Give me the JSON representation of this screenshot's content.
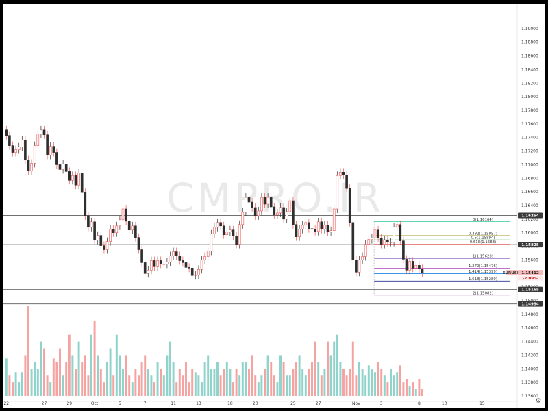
{
  "watermark": "CMPRO.IR",
  "colors": {
    "up": "#26a69a",
    "down": "#ef5350",
    "volume_up": "#8fd3cb",
    "volume_down": "#f5a3a1",
    "level": "#707070"
  },
  "settings_icon": "gear-icon",
  "chart_data": {
    "type": "candlestick",
    "symbol": "EURUSD",
    "ylim": [
      1.136,
      1.192
    ],
    "y_ticks": [
      "1.19000",
      "1.18800",
      "1.18600",
      "1.18400",
      "1.18200",
      "1.18000",
      "1.17800",
      "1.17600",
      "1.17400",
      "1.17200",
      "1.17000",
      "1.16800",
      "1.16600",
      "1.16400",
      "1.16200",
      "1.16000",
      "1.15800",
      "1.15600",
      "1.15400",
      "1.15200",
      "1.15000",
      "1.14800",
      "1.14600",
      "1.14400",
      "1.14200",
      "1.14000",
      "1.13800",
      "1.13600"
    ],
    "x_ticks": [
      {
        "label": "22",
        "index": 0
      },
      {
        "label": "27",
        "index": 12
      },
      {
        "label": "29",
        "index": 20
      },
      {
        "label": "Oct",
        "index": 28
      },
      {
        "label": "5",
        "index": 36
      },
      {
        "label": "7",
        "index": 44
      },
      {
        "label": "11",
        "index": 53
      },
      {
        "label": "13",
        "index": 61
      },
      {
        "label": "18",
        "index": 71
      },
      {
        "label": "20",
        "index": 79
      },
      {
        "label": "25",
        "index": 91
      },
      {
        "label": "27",
        "index": 99
      },
      {
        "label": "Nov",
        "index": 111
      },
      {
        "label": "3",
        "index": 119
      },
      {
        "label": "8",
        "index": 131
      },
      {
        "label": "10",
        "index": 139
      },
      {
        "label": "15",
        "index": 151
      }
    ],
    "series": [
      {
        "name": "EURUSD",
        "close": [
          1.1743,
          1.1728,
          1.1718,
          1.1722,
          1.1726,
          1.1736,
          1.1707,
          1.1691,
          1.1702,
          1.1728,
          1.1745,
          1.1751,
          1.1744,
          1.1714,
          1.1727,
          1.1718,
          1.17,
          1.1693,
          1.1701,
          1.169,
          1.1677,
          1.1684,
          1.167,
          1.1688,
          1.1659,
          1.1625,
          1.1608,
          1.1616,
          1.1589,
          1.1596,
          1.1581,
          1.1575,
          1.1587,
          1.1605,
          1.16,
          1.161,
          1.1619,
          1.1635,
          1.1617,
          1.1604,
          1.161,
          1.1593,
          1.1575,
          1.1556,
          1.154,
          1.1545,
          1.1559,
          1.155,
          1.1559,
          1.1554,
          1.1554,
          1.1557,
          1.1566,
          1.1572,
          1.1566,
          1.1559,
          1.1556,
          1.1549,
          1.1548,
          1.1537,
          1.1538,
          1.1546,
          1.156,
          1.1565,
          1.1573,
          1.1598,
          1.1608,
          1.1615,
          1.161,
          1.1597,
          1.1601,
          1.1604,
          1.1595,
          1.1583,
          1.1612,
          1.163,
          1.1652,
          1.1645,
          1.1637,
          1.1625,
          1.1632,
          1.1652,
          1.1642,
          1.1652,
          1.1638,
          1.1626,
          1.1629,
          1.1637,
          1.162,
          1.1631,
          1.1647,
          1.1612,
          1.1594,
          1.1605,
          1.1611,
          1.1615,
          1.1606,
          1.1605,
          1.1602,
          1.1616,
          1.1605,
          1.1611,
          1.1601,
          1.1603,
          1.1635,
          1.1684,
          1.1689,
          1.1685,
          1.1665,
          1.1615,
          1.156,
          1.1542,
          1.156,
          1.1565,
          1.1583,
          1.159,
          1.1592,
          1.1604,
          1.1592,
          1.1583,
          1.1589,
          1.1586,
          1.1586,
          1.1608,
          1.1612,
          1.1588,
          1.1561,
          1.1545,
          1.1558,
          1.1548,
          1.1552,
          1.1547,
          1.1541
        ]
      }
    ],
    "volume": [
      1.1415,
      1.139,
      1.138,
      1.1395,
      1.138,
      1.1395,
      1.142,
      1.1492,
      1.14,
      1.141,
      1.14,
      1.144,
      1.143,
      1.139,
      1.138,
      1.1415,
      1.141,
      1.143,
      1.139,
      1.141,
      1.145,
      1.142,
      1.14,
      1.144,
      1.141,
      1.142,
      1.139,
      1.145,
      1.147,
      1.142,
      1.14,
      1.138,
      1.141,
      1.143,
      1.139,
      1.145,
      1.142,
      1.14,
      1.142,
      1.139,
      1.138,
      1.14,
      1.139,
      1.141,
      1.142,
      1.14,
      1.139,
      1.138,
      1.141,
      1.14,
      1.139,
      1.142,
      1.144,
      1.141,
      1.138,
      1.14,
      1.139,
      1.141,
      1.138,
      1.14,
      1.1395,
      1.139,
      1.138,
      1.141,
      1.142,
      1.14,
      1.14,
      1.141,
      1.139,
      1.14,
      1.141,
      1.14,
      1.138,
      1.14,
      1.139,
      1.141,
      1.141,
      1.14,
      1.142,
      1.139,
      1.138,
      1.139,
      1.14,
      1.142,
      1.141,
      1.139,
      1.138,
      1.142,
      1.141,
      1.139,
      1.139,
      1.14,
      1.141,
      1.142,
      1.14,
      1.139,
      1.14,
      1.141,
      1.144,
      1.141,
      1.139,
      1.14,
      1.144,
      1.142,
      1.144,
      1.145,
      1.141,
      1.14,
      1.139,
      1.14,
      1.144,
      1.139,
      1.141,
      1.14,
      1.139,
      1.1405,
      1.14,
      1.1395,
      1.141,
      1.14,
      1.139,
      1.138,
      1.14,
      1.139,
      1.1395,
      1.1405,
      1.138,
      1.1385,
      1.1375,
      1.138,
      1.137,
      1.1385,
      1.137
    ],
    "price_levels": [
      {
        "label": "1.16254",
        "value": 1.16254
      },
      {
        "label": "1.15825",
        "value": 1.15825
      },
      {
        "label": "1.15165",
        "value": 1.15165
      },
      {
        "label": "1.14954",
        "value": 1.14954
      }
    ],
    "fib_levels": [
      {
        "label": "0(1.16164)",
        "value": 1.16164,
        "color": "#4dd0a8"
      },
      {
        "label": "0.382(1.15957)",
        "value": 1.15957,
        "color": "#9e9d24"
      },
      {
        "label": "0.5(1.15894)",
        "value": 1.15894,
        "color": "#66bb6a"
      },
      {
        "label": "0.618(1.1583)",
        "value": 1.1583,
        "color": "#e57373"
      },
      {
        "label": "1(1.15623)",
        "value": 1.15623,
        "color": "#7e57c2"
      },
      {
        "label": "1.272(1.15476)",
        "value": 1.15476,
        "color": "#ab47bc"
      },
      {
        "label": "1.414(1.15399)",
        "value": 1.15399,
        "color": "#1e88e5"
      },
      {
        "label": "1.618(1.15289)",
        "value": 1.15289,
        "color": "#283593"
      },
      {
        "label": "2(1.15082)",
        "value": 1.15082,
        "color": "#ce93d8"
      }
    ],
    "current_price": {
      "symbol": "EURUSD",
      "label": "1.15412",
      "value": 1.15412,
      "change": "-2.09%"
    }
  }
}
